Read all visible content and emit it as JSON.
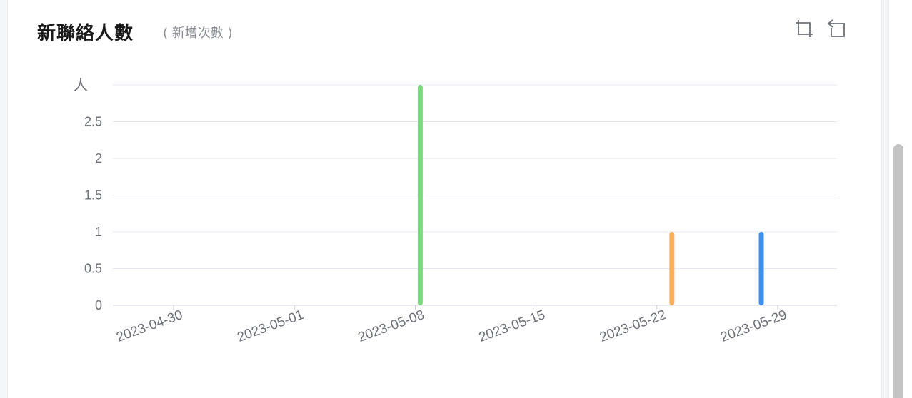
{
  "header": {
    "title": "新聯絡人數",
    "subtitle": "( 新增次數 )"
  },
  "toolbar": {
    "zoom_icon": "crop-zoom-icon",
    "reset_icon": "undo-icon"
  },
  "colors": {
    "grid": "#e6e7f0",
    "axis_text": "#6e7079",
    "green": "#7dd87f",
    "orange": "#fcae5b",
    "blue": "#3d8ff5"
  },
  "chart_data": {
    "type": "bar",
    "title": "新聯絡人數",
    "subtitle": "( 新增次數 )",
    "ylabel": "人",
    "xlabel": "",
    "ylim": [
      0,
      3
    ],
    "yticks": [
      "0",
      "0.5",
      "1",
      "1.5",
      "2",
      "2.5"
    ],
    "categories": [
      "2023-04-30",
      "2023-05-01",
      "2023-05-08",
      "2023-05-15",
      "2023-05-22",
      "2023-05-29"
    ],
    "grid": true,
    "legend": "none",
    "bars": [
      {
        "date": "2023-05-08",
        "value": 3,
        "color": "#7dd87f"
      },
      {
        "date": "2023-05-22",
        "value": 1,
        "color": "#fcae5b"
      },
      {
        "date": "2023-05-29",
        "value": 1,
        "color": "#3d8ff5"
      }
    ]
  }
}
